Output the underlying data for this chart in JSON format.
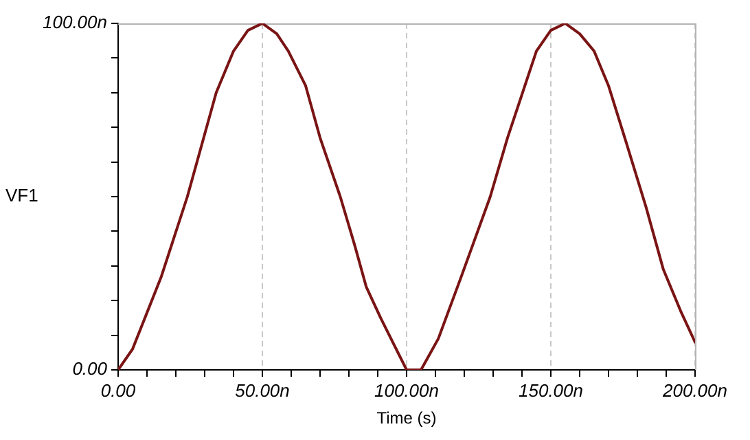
{
  "chart_data": {
    "type": "line",
    "xlabel": "Time (s)",
    "ylabel": "VF1",
    "x": [
      0,
      5,
      15,
      24,
      34,
      40,
      45,
      50,
      55,
      59,
      65,
      70,
      77,
      82,
      86,
      91,
      100,
      105,
      111,
      119,
      129,
      135,
      145,
      150,
      155,
      160,
      165,
      170,
      176,
      183,
      189,
      195,
      200
    ],
    "series": [
      {
        "color": "#7a1414",
        "values": [
          0,
          6,
          27,
          50,
          80,
          92,
          98,
          100,
          97,
          92,
          82,
          67,
          50,
          36,
          24,
          15,
          0,
          0,
          9,
          27,
          50,
          67,
          92,
          98,
          100,
          97,
          92,
          82,
          66,
          47,
          29,
          17,
          8
        ]
      }
    ],
    "xlim": [
      0,
      200
    ],
    "ylim": [
      0,
      100
    ],
    "xticks": [
      {
        "value": 0,
        "label": "0.00"
      },
      {
        "value": 10,
        "label": null
      },
      {
        "value": 20,
        "label": null
      },
      {
        "value": 30,
        "label": null
      },
      {
        "value": 40,
        "label": null
      },
      {
        "value": 50,
        "label": "50.00n"
      },
      {
        "value": 60,
        "label": null
      },
      {
        "value": 70,
        "label": null
      },
      {
        "value": 80,
        "label": null
      },
      {
        "value": 90,
        "label": null
      },
      {
        "value": 100,
        "label": "100.00n"
      },
      {
        "value": 110,
        "label": null
      },
      {
        "value": 120,
        "label": null
      },
      {
        "value": 130,
        "label": null
      },
      {
        "value": 140,
        "label": null
      },
      {
        "value": 150,
        "label": "150.00n"
      },
      {
        "value": 160,
        "label": null
      },
      {
        "value": 170,
        "label": null
      },
      {
        "value": 180,
        "label": null
      },
      {
        "value": 190,
        "label": null
      },
      {
        "value": 200,
        "label": "200.00n"
      }
    ],
    "yticks": [
      {
        "value": 0,
        "label": "0.00"
      },
      {
        "value": 10,
        "label": null
      },
      {
        "value": 20,
        "label": null
      },
      {
        "value": 30,
        "label": null
      },
      {
        "value": 40,
        "label": null
      },
      {
        "value": 50,
        "label": null
      },
      {
        "value": 60,
        "label": null
      },
      {
        "value": 70,
        "label": null
      },
      {
        "value": 80,
        "label": null
      },
      {
        "value": 90,
        "label": null
      },
      {
        "value": 100,
        "label": "100.00n"
      }
    ],
    "grid": "x",
    "marker": "none",
    "line_style": "solid"
  }
}
